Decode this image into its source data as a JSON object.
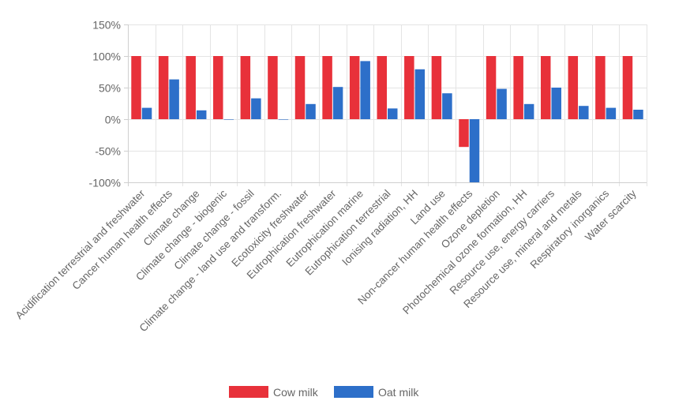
{
  "chart_data": {
    "type": "bar",
    "title": "",
    "xlabel": "",
    "ylabel": "",
    "ylim": [
      -100,
      150
    ],
    "ytick_values": [
      -100,
      -50,
      0,
      50,
      100,
      150
    ],
    "ytick_labels": [
      "-100%",
      "-50%",
      "0%",
      "50%",
      "100%",
      "150%"
    ],
    "grid": true,
    "legend_position": "bottom",
    "categories": [
      "Acidification terrestrial and freshwater",
      "Cancer human health effects",
      "Climate change",
      "Climate change - biogenic",
      "Climate change - fossil",
      "Climate change - land use and transform.",
      "Ecotoxicity freshwater",
      "Eutrophication freshwater",
      "Eutrophication marine",
      "Eutrophication terrestrial",
      "Ionising radiation, HH",
      "Land use",
      "Non-cancer human health effects",
      "Ozone depletion",
      "Photochemical ozone formation, HH",
      "Resource use, energy carriers",
      "Resource use, mineral and metals",
      "Respiratory inorganics",
      "Water scarcity"
    ],
    "series": [
      {
        "name": "Cow milk",
        "color": "#e8313a",
        "values": [
          100,
          100,
          100,
          100,
          100,
          100,
          100,
          100,
          100,
          100,
          100,
          100,
          -44,
          100,
          100,
          100,
          100,
          100,
          100
        ]
      },
      {
        "name": "Oat milk",
        "color": "#2d6fc9",
        "values": [
          18,
          63,
          14,
          0,
          33,
          0,
          24,
          51,
          92,
          17,
          79,
          41,
          -100,
          48,
          24,
          50,
          21,
          18,
          15
        ]
      }
    ]
  }
}
